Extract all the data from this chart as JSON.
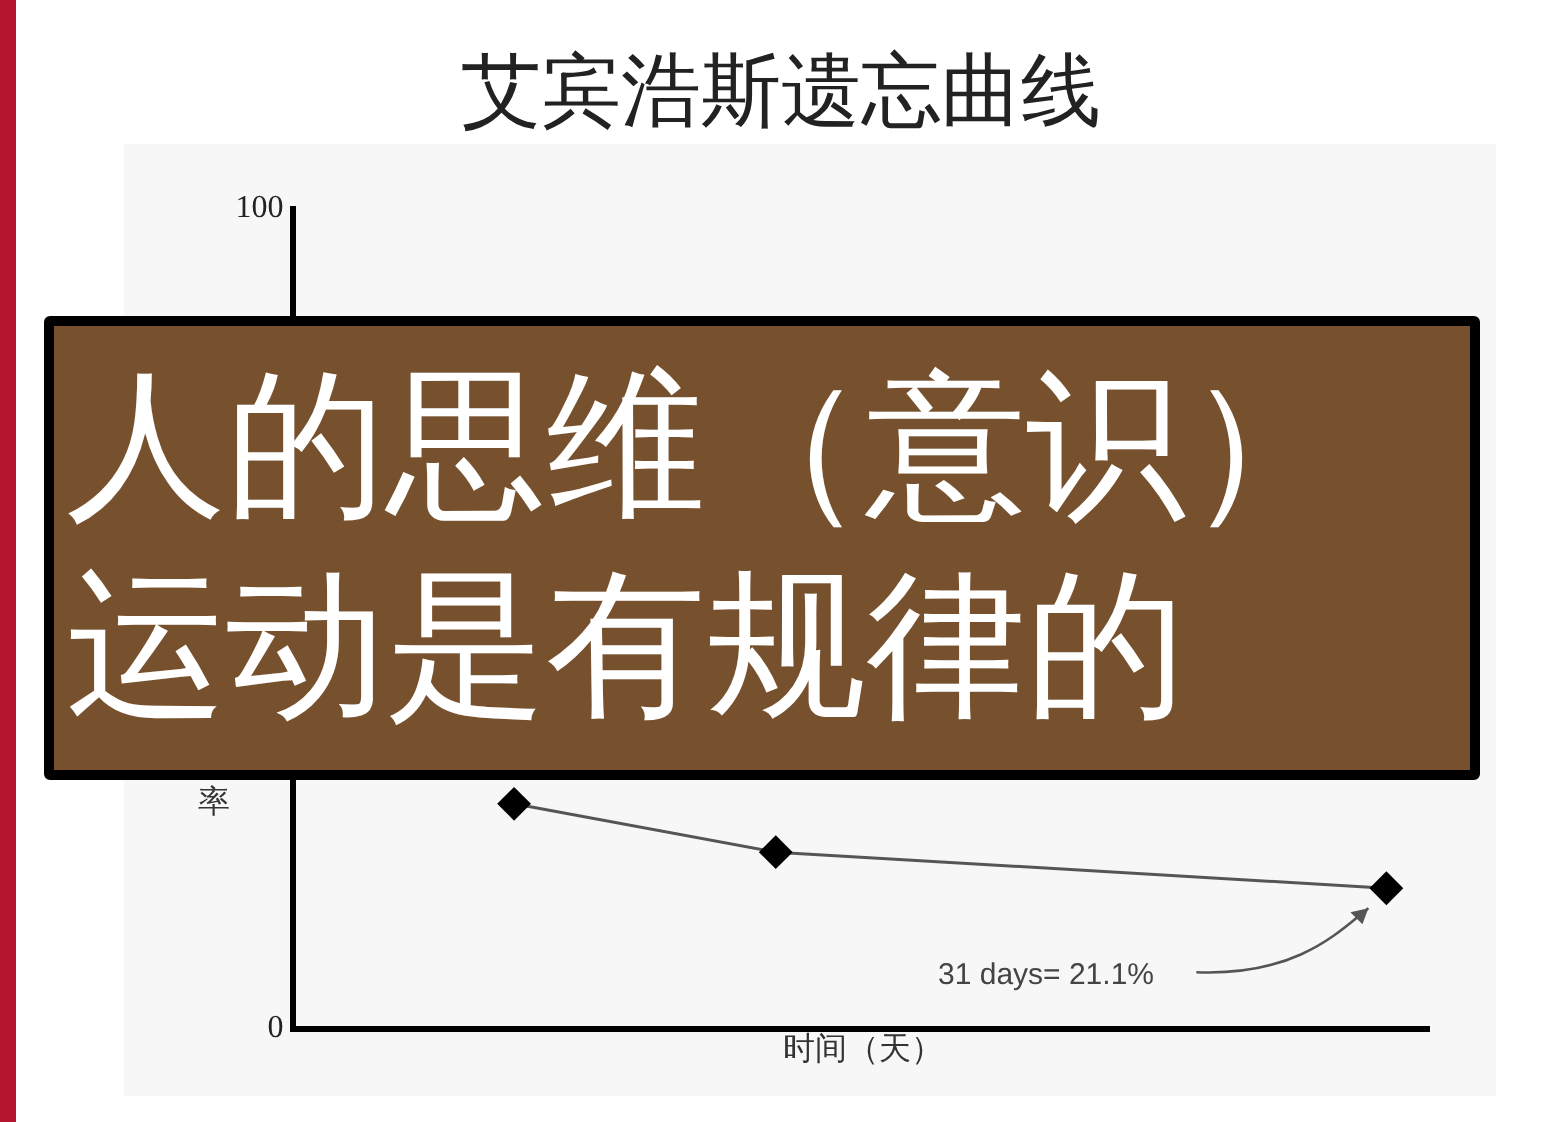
{
  "chart_data": {
    "type": "line",
    "title": "艾宾浩斯遗忘曲线",
    "xlabel": "时间（天）",
    "ylabel": "率",
    "categories": [
      null,
      null,
      null,
      null,
      null,
      null,
      null,
      null,
      null,
      null,
      null,
      null,
      null
    ],
    "series": [
      {
        "color": "#555555",
        "values": [
          null,
          null,
          27.1,
          null,
          null,
          21.2,
          null,
          null,
          null,
          null,
          null,
          null,
          16.8
        ]
      }
    ],
    "ylim": [
      0,
      100
    ],
    "yticks": [
      0,
      100
    ],
    "tick_labels": "y",
    "grid": false,
    "legend": false,
    "marker": "diamond",
    "line_style": "solid",
    "annotations": [
      "31 days= 21.1%",
      "人的思维（意识）运动是有规律的"
    ]
  }
}
